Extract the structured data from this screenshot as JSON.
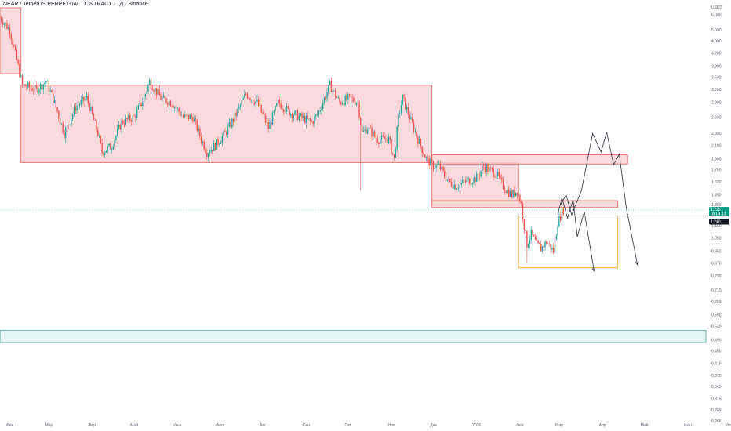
{
  "header": {
    "symbol_line": "NEAR / TetherUS PERPETUAL CONTRACT · 1Д · Binance"
  },
  "colors": {
    "up": "#26a69a",
    "down": "#ef5350",
    "zone_red_fill": "#f9d4d6",
    "zone_red_stroke": "#e55b5b",
    "zone_teal_fill": "#e3f4f1",
    "zone_teal_stroke": "#3a9e8f",
    "orange_box": "#f5a623",
    "last_price_bg": "#089981",
    "level_bg": "#131722",
    "projection": "#2a2e39"
  },
  "chart_data": {
    "type": "candlestick",
    "currency_label": "USDT",
    "y_scale": "log",
    "ylim": [
      0.262,
      5.9
    ],
    "y_ticks": [
      "5,600",
      "5,000",
      "4,600",
      "4,200",
      "3,800",
      "3,500",
      "3,200",
      "2,900",
      "2,600",
      "2,300",
      "2,100",
      "1,900",
      "1,750",
      "1,600",
      "1,450",
      "1,350",
      "1,150",
      "1,050",
      "0,950",
      "0,870",
      "0,790",
      "0,710",
      "0,650",
      "0,590",
      "0,540",
      "0,490",
      "0,450",
      "0,410",
      "0,375",
      "0,345",
      "0,315",
      "0,289",
      "0,266"
    ],
    "x_domain": [
      "2025-01-25",
      "2026-06-14"
    ],
    "x_ticks": [
      {
        "date": "2025-02-01",
        "label": "Фев"
      },
      {
        "date": "2025-03-01",
        "label": "Мар"
      },
      {
        "date": "2025-04-01",
        "label": "Апр"
      },
      {
        "date": "2025-05-01",
        "label": "Май"
      },
      {
        "date": "2025-06-01",
        "label": "Июн"
      },
      {
        "date": "2025-07-01",
        "label": "Июл"
      },
      {
        "date": "2025-08-01",
        "label": "Авг"
      },
      {
        "date": "2025-09-01",
        "label": "Сен"
      },
      {
        "date": "2025-10-01",
        "label": "Окт"
      },
      {
        "date": "2025-11-01",
        "label": "Ноя"
      },
      {
        "date": "2025-12-01",
        "label": "Дек"
      },
      {
        "date": "2026-01-01",
        "label": "2026"
      },
      {
        "date": "2026-02-01",
        "label": "Фев"
      },
      {
        "date": "2026-03-01",
        "label": "Мар"
      },
      {
        "date": "2026-04-01",
        "label": "Апр"
      },
      {
        "date": "2026-05-01",
        "label": "Май"
      },
      {
        "date": "2026-06-01",
        "label": "Июн"
      },
      {
        "date": "2026-07-01",
        "label": "Июл"
      }
    ],
    "price_path": [
      [
        "2025-01-25",
        5.5
      ],
      [
        "2025-02-01",
        5.0
      ],
      [
        "2025-02-07",
        3.8
      ],
      [
        "2025-02-10",
        3.3
      ],
      [
        "2025-02-20",
        3.2
      ],
      [
        "2025-02-27",
        3.4
      ],
      [
        "2025-03-05",
        2.9
      ],
      [
        "2025-03-12",
        2.3
      ],
      [
        "2025-03-20",
        2.8
      ],
      [
        "2025-03-28",
        3.0
      ],
      [
        "2025-04-05",
        2.3
      ],
      [
        "2025-04-08",
        2.0
      ],
      [
        "2025-04-15",
        2.1
      ],
      [
        "2025-04-22",
        2.5
      ],
      [
        "2025-05-01",
        2.6
      ],
      [
        "2025-05-08",
        3.0
      ],
      [
        "2025-05-12",
        3.4
      ],
      [
        "2025-05-20",
        3.0
      ],
      [
        "2025-05-28",
        2.9
      ],
      [
        "2025-06-05",
        2.6
      ],
      [
        "2025-06-12",
        2.6
      ],
      [
        "2025-06-18",
        2.2
      ],
      [
        "2025-06-22",
        2.0
      ],
      [
        "2025-06-28",
        2.1
      ],
      [
        "2025-07-05",
        2.3
      ],
      [
        "2025-07-12",
        2.6
      ],
      [
        "2025-07-20",
        3.1
      ],
      [
        "2025-07-28",
        2.9
      ],
      [
        "2025-08-05",
        2.4
      ],
      [
        "2025-08-12",
        2.9
      ],
      [
        "2025-08-20",
        2.7
      ],
      [
        "2025-08-28",
        2.6
      ],
      [
        "2025-09-05",
        2.5
      ],
      [
        "2025-09-10",
        2.7
      ],
      [
        "2025-09-18",
        3.3
      ],
      [
        "2025-09-25",
        2.9
      ],
      [
        "2025-10-02",
        3.0
      ],
      [
        "2025-10-08",
        2.9
      ],
      [
        "2025-10-11",
        2.3
      ],
      [
        "2025-10-15",
        2.4
      ],
      [
        "2025-10-22",
        2.2
      ],
      [
        "2025-10-30",
        2.2
      ],
      [
        "2025-11-03",
        1.9
      ],
      [
        "2025-11-06",
        2.6
      ],
      [
        "2025-11-09",
        3.0
      ],
      [
        "2025-11-14",
        2.6
      ],
      [
        "2025-11-20",
        2.2
      ],
      [
        "2025-11-26",
        1.9
      ],
      [
        "2025-12-01",
        1.8
      ],
      [
        "2025-12-05",
        1.8
      ],
      [
        "2025-12-12",
        1.6
      ],
      [
        "2025-12-18",
        1.55
      ],
      [
        "2025-12-24",
        1.6
      ],
      [
        "2026-01-01",
        1.65
      ],
      [
        "2026-01-06",
        1.8
      ],
      [
        "2026-01-10",
        1.75
      ],
      [
        "2026-01-15",
        1.7
      ],
      [
        "2026-01-20",
        1.55
      ],
      [
        "2026-01-26",
        1.45
      ],
      [
        "2026-01-30",
        1.5
      ],
      [
        "2026-02-02",
        1.35
      ],
      [
        "2026-02-04",
        1.15
      ],
      [
        "2026-02-06",
        1.0
      ],
      [
        "2026-02-09",
        1.08
      ],
      [
        "2026-02-13",
        1.0
      ],
      [
        "2026-02-16",
        0.97
      ],
      [
        "2026-02-20",
        1.02
      ],
      [
        "2026-02-25",
        0.95
      ],
      [
        "2026-02-28",
        1.18
      ],
      [
        "2026-03-04",
        1.3
      ]
    ],
    "wicks": [
      {
        "date": "2025-10-10",
        "low": 1.5
      },
      {
        "date": "2026-02-06",
        "low": 0.87
      }
    ],
    "zones": [
      {
        "name": "red-zone-january",
        "x1": "2025-01-25",
        "x2": "2025-02-09",
        "y_top": 5.9,
        "y_bottom": 3.6
      },
      {
        "name": "red-zone-range",
        "x1": "2025-02-09",
        "x2": "2025-11-30",
        "y_top": 3.3,
        "y_bottom": 1.85
      },
      {
        "name": "red-zone-december",
        "x1": "2025-11-30",
        "x2": "2026-01-31",
        "y_top": 1.85,
        "y_bottom": 1.34
      },
      {
        "name": "red-zone-resistance-upper",
        "x1": "2025-11-30",
        "x2": "2026-04-19",
        "y_top": 1.96,
        "y_bottom": 1.83
      },
      {
        "name": "red-zone-resistance-lower",
        "x1": "2025-11-30",
        "x2": "2026-04-12",
        "y_top": 1.39,
        "y_bottom": 1.32
      }
    ],
    "teal_zone": {
      "y_top": 0.525,
      "y_bottom": 0.48
    },
    "orange_box": {
      "x1": "2026-01-31",
      "x2": "2026-04-12",
      "y_top": 1.24,
      "y_bottom": 0.84
    },
    "horizontal_level": {
      "y": 1.24,
      "x1": "2026-01-31"
    },
    "last_price_line": {
      "y": 1.295
    },
    "projection_up": [
      [
        "2026-03-02",
        1.35
      ],
      [
        "2026-03-06",
        1.45
      ],
      [
        "2026-03-10",
        1.25
      ],
      [
        "2026-03-17",
        1.5
      ],
      [
        "2026-03-25",
        2.3
      ],
      [
        "2026-03-31",
        2.0
      ],
      [
        "2026-04-04",
        2.32
      ],
      [
        "2026-04-09",
        1.82
      ],
      [
        "2026-04-13",
        1.97
      ],
      [
        "2026-04-18",
        1.32
      ],
      [
        "2026-04-26",
        0.86
      ]
    ],
    "projection_down": [
      [
        "2026-02-28",
        1.25
      ],
      [
        "2026-03-03",
        1.42
      ],
      [
        "2026-03-07",
        1.22
      ],
      [
        "2026-03-11",
        1.4
      ],
      [
        "2026-03-14",
        1.06
      ],
      [
        "2026-03-19",
        1.28
      ],
      [
        "2026-03-26",
        0.82
      ]
    ],
    "price_tags": [
      {
        "value": 1.295,
        "label": "1,295",
        "sub": "09:04:12",
        "kind": "last"
      },
      {
        "value": 1.24,
        "label": "1,240",
        "kind": "level"
      }
    ]
  }
}
